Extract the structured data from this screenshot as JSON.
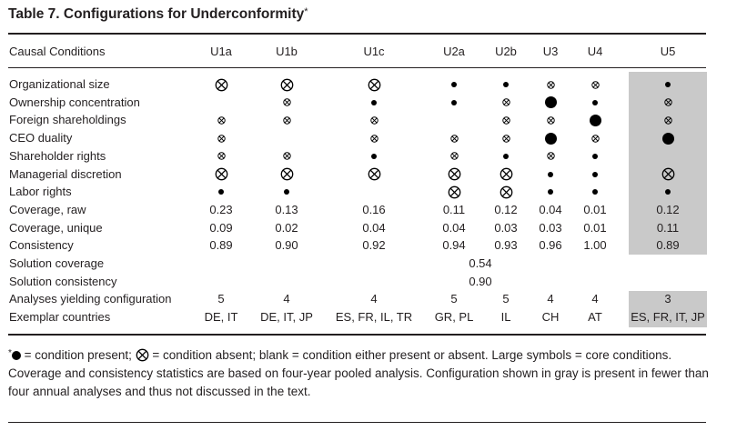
{
  "title": "Table 7.  Configurations for Underconformity",
  "title_mark": "*",
  "header": {
    "label": "Causal Conditions",
    "columns": [
      "U1a",
      "U1b",
      "U1c",
      "U2a",
      "U2b",
      "U3",
      "U4",
      "U5"
    ]
  },
  "legend_symbols": {
    "present_small": "small-dot",
    "present_large": "large-dot",
    "absent_small": "small-crossed-circle",
    "absent_large": "large-crossed-circle",
    "blank": "none"
  },
  "conditions": [
    {
      "label": "Organizational size",
      "cells": [
        "X",
        "X",
        "X",
        "p",
        "p",
        "x",
        "x",
        "p"
      ]
    },
    {
      "label": "Ownership concentration",
      "cells": [
        "",
        "x",
        "p",
        "p",
        "x",
        "P",
        "p",
        "x"
      ]
    },
    {
      "label": "Foreign shareholdings",
      "cells": [
        "x",
        "x",
        "x",
        "",
        "x",
        "x",
        "P",
        "x"
      ]
    },
    {
      "label": "CEO duality",
      "cells": [
        "x",
        "",
        "x",
        "x",
        "x",
        "P",
        "x",
        "P"
      ]
    },
    {
      "label": "Shareholder rights",
      "cells": [
        "x",
        "x",
        "p",
        "x",
        "p",
        "x",
        "p",
        ""
      ]
    },
    {
      "label": "Managerial discretion",
      "cells": [
        "X",
        "X",
        "X",
        "X",
        "X",
        "p",
        "p",
        "X"
      ]
    },
    {
      "label": "Labor rights",
      "cells": [
        "p",
        "p",
        "",
        "X",
        "X",
        "p",
        "p",
        "p"
      ]
    }
  ],
  "stats": [
    {
      "label": "Coverage, raw",
      "values": [
        "0.23",
        "0.13",
        "0.16",
        "0.11",
        "0.12",
        "0.04",
        "0.01",
        "0.12"
      ]
    },
    {
      "label": "Coverage, unique",
      "values": [
        "0.09",
        "0.02",
        "0.04",
        "0.04",
        "0.03",
        "0.03",
        "0.01",
        "0.11"
      ]
    },
    {
      "label": "Consistency",
      "values": [
        "0.89",
        "0.90",
        "0.92",
        "0.94",
        "0.93",
        "0.96",
        "1.00",
        "0.89"
      ]
    }
  ],
  "solution": {
    "coverage_label": "Solution coverage",
    "coverage_value": "0.54",
    "consistency_label": "Solution consistency",
    "consistency_value": "0.90"
  },
  "analyses": {
    "label": "Analyses yielding configuration",
    "values": [
      "5",
      "4",
      "4",
      "5",
      "5",
      "4",
      "4",
      "3"
    ]
  },
  "exemplars": {
    "label": "Exemplar countries",
    "values": [
      "DE, IT",
      "DE, IT, JP",
      "ES, FR, IL, TR",
      "GR, PL",
      "IL",
      "CH",
      "AT",
      "ES, FR, IT, JP"
    ]
  },
  "footnote": {
    "mark": "*",
    "present_text": " = condition present; ",
    "absent_text": " = condition absent; blank = condition either present or absent. Large symbols = core conditions. Coverage and consistency statistics are based on four-year pooled analysis. Configuration shown in gray is present in fewer than four annual analyses and thus not discussed in the text."
  },
  "colors": {
    "gray_highlight": "#c9c9c9",
    "ink": "#231f20"
  }
}
